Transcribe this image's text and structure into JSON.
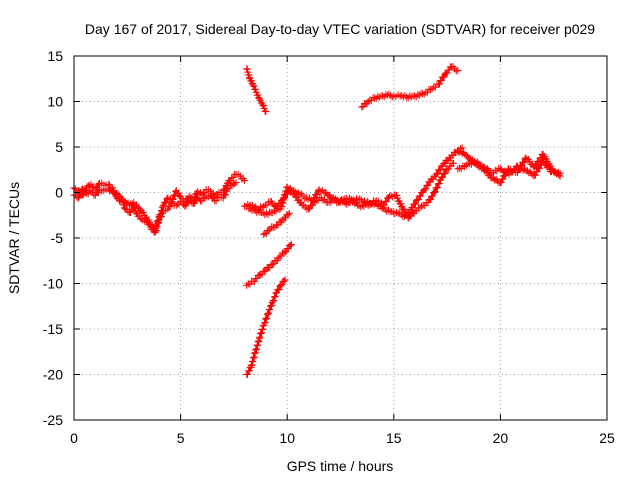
{
  "chart_data": {
    "type": "scatter",
    "title": "Day 167 of 2017, Sidereal Day-to-day VTEC variation (SDTVAR) for receiver p029",
    "xlabel": "GPS time / hours",
    "ylabel": "SDTVAR / TECUs",
    "xlim": [
      0,
      25
    ],
    "ylim": [
      -25,
      15
    ],
    "xticks": [
      0,
      5,
      10,
      15,
      20,
      25
    ],
    "yticks": [
      15,
      10,
      5,
      0,
      -5,
      -10,
      -15,
      -20,
      -25
    ],
    "grid": true,
    "marker": "plus",
    "color": "#ff0000",
    "series": [
      {
        "x": [
          0.0,
          0.2,
          0.4,
          0.6,
          0.8,
          1.0,
          1.2,
          1.4,
          1.6,
          1.8,
          2.0,
          2.2,
          2.4,
          2.6,
          2.8,
          3.0,
          3.2,
          3.4,
          3.6,
          3.8,
          4.0,
          4.2,
          4.4,
          4.6,
          4.8,
          5.0,
          5.2,
          5.4,
          5.6,
          5.8,
          6.0,
          6.2,
          6.4,
          6.6,
          6.8,
          7.0,
          7.2,
          7.4,
          7.6,
          7.8,
          8.0
        ],
        "y": [
          0.5,
          0.2,
          -0.3,
          0.6,
          0.9,
          0.4,
          1.0,
          0.8,
          0.9,
          0.5,
          -0.6,
          -0.9,
          -1.0,
          -1.4,
          -1.1,
          -1.6,
          -2.2,
          -2.8,
          -3.5,
          -4.0,
          -2.6,
          -1.4,
          -0.6,
          -1.0,
          0.2,
          -0.5,
          -1.0,
          -0.4,
          -0.8,
          0.1,
          -0.2,
          0.3,
          0.1,
          -0.4,
          0.0,
          0.2,
          1.0,
          1.6,
          2.0,
          1.8,
          1.3
        ]
      },
      {
        "x": [
          0.0,
          0.2,
          0.4,
          0.6,
          0.8,
          1.0,
          1.2,
          1.4,
          1.6,
          1.8,
          2.0,
          2.2,
          2.4,
          2.6,
          2.8,
          3.0,
          3.2,
          3.4,
          3.6,
          3.8,
          4.0,
          4.2,
          4.4,
          4.6,
          4.8,
          5.0,
          5.2,
          5.4,
          5.6,
          5.8,
          6.0,
          6.2,
          6.4,
          6.6,
          6.8,
          7.0,
          7.2,
          7.4,
          7.6
        ],
        "y": [
          -0.3,
          -0.6,
          0.4,
          -0.1,
          0.2,
          -0.3,
          0.3,
          0.2,
          0.4,
          0.1,
          -0.2,
          -0.5,
          -1.8,
          -2.2,
          -1.6,
          -2.6,
          -3.0,
          -3.2,
          -3.8,
          -4.4,
          -3.0,
          -2.0,
          -1.8,
          -1.2,
          -1.4,
          -1.0,
          -1.5,
          -0.9,
          -1.2,
          -0.6,
          -0.9,
          -0.5,
          -0.3,
          -0.9,
          -0.5,
          -0.6,
          0.4,
          0.8,
          1.1
        ]
      },
      {
        "x": [
          8.0,
          8.3,
          8.6,
          8.9,
          9.2,
          9.5,
          9.8,
          10.1,
          10.4,
          10.7,
          11.0,
          11.3,
          11.6,
          11.9,
          12.2,
          12.5,
          12.8,
          13.1,
          13.4,
          13.7,
          14.0,
          14.3,
          14.6,
          14.9,
          15.2,
          15.5,
          15.8,
          16.1,
          16.4,
          16.7,
          17.0,
          17.3,
          17.6,
          17.9,
          18.2
        ],
        "y": [
          -1.5,
          -1.4,
          -1.8,
          -1.5,
          -1.0,
          -1.6,
          -0.8,
          0.3,
          -0.4,
          -1.4,
          -1.8,
          -1.0,
          -0.6,
          -1.1,
          -0.8,
          -0.9,
          -1.3,
          -0.8,
          -0.7,
          -1.1,
          -1.2,
          -1.5,
          -1.9,
          -2.1,
          -2.3,
          -2.6,
          -1.9,
          -0.8,
          0.2,
          1.2,
          2.0,
          3.0,
          3.8,
          4.4,
          4.9
        ]
      },
      {
        "x": [
          8.2,
          8.5,
          8.8,
          9.1,
          9.4,
          9.7,
          10.0,
          10.3,
          10.6,
          10.9,
          11.2,
          11.5,
          11.8,
          12.1,
          12.4,
          12.7,
          13.0,
          13.3,
          13.6,
          13.9,
          14.2,
          14.5,
          14.8,
          15.1,
          15.4,
          15.7,
          16.0,
          16.3,
          16.6,
          16.9,
          17.2,
          17.5,
          17.8
        ],
        "y": [
          -1.8,
          -2.0,
          -2.2,
          -2.4,
          -2.0,
          -1.8,
          0.6,
          0.2,
          -0.2,
          -0.6,
          -0.9,
          0.3,
          0.0,
          -0.6,
          -1.1,
          -0.7,
          -0.8,
          -1.4,
          -1.5,
          -1.2,
          -0.9,
          -1.4,
          -0.4,
          -0.3,
          -1.7,
          -2.8,
          -2.0,
          -1.5,
          -1.1,
          0.0,
          1.4,
          2.6,
          3.2
        ]
      },
      {
        "x": [
          18.0,
          18.4,
          18.8,
          19.2,
          19.6,
          20.0,
          20.4,
          20.8,
          21.2,
          21.6,
          22.0,
          22.4,
          22.8
        ],
        "y": [
          4.6,
          4.1,
          3.2,
          2.6,
          1.6,
          1.1,
          2.6,
          2.2,
          3.8,
          2.8,
          4.2,
          2.6,
          1.8
        ]
      },
      {
        "x": [
          18.0,
          18.4,
          18.8,
          19.2,
          19.6,
          20.0,
          20.4,
          20.8,
          21.2,
          21.6,
          22.0,
          22.4,
          22.8
        ],
        "y": [
          2.6,
          3.0,
          3.4,
          2.8,
          2.2,
          2.6,
          2.0,
          2.9,
          2.4,
          1.9,
          3.4,
          2.3,
          2.1
        ]
      },
      {
        "x": [
          8.1,
          8.25,
          8.4,
          8.55,
          8.7,
          8.85,
          9.0
        ],
        "y": [
          13.6,
          12.5,
          11.8,
          11.0,
          10.3,
          9.6,
          8.9
        ]
      },
      {
        "x": [
          13.5,
          13.8,
          14.1,
          14.4,
          14.7,
          15.0,
          15.3,
          15.6,
          15.9,
          16.2,
          16.5,
          16.8,
          17.1,
          17.4,
          17.7,
          18.0
        ],
        "y": [
          9.4,
          10.0,
          10.4,
          10.6,
          10.7,
          10.6,
          10.6,
          10.5,
          10.6,
          10.7,
          11.0,
          11.4,
          11.9,
          13.0,
          13.8,
          13.4
        ]
      },
      {
        "x": [
          8.1,
          8.4,
          8.7,
          9.0,
          9.3,
          9.6,
          9.9,
          10.2
        ],
        "y": [
          -10.2,
          -9.8,
          -9.1,
          -8.5,
          -7.9,
          -7.2,
          -6.5,
          -5.7
        ]
      },
      {
        "x": [
          8.1,
          8.3,
          8.5,
          8.7,
          8.9,
          9.1,
          9.3,
          9.5,
          9.7,
          9.9
        ],
        "y": [
          -20.0,
          -19.2,
          -17.6,
          -16.0,
          -14.6,
          -13.3,
          -12.1,
          -11.0,
          -10.2,
          -9.6
        ]
      },
      {
        "x": [
          8.9,
          9.2,
          9.5,
          9.8,
          10.1
        ],
        "y": [
          -4.6,
          -4.0,
          -3.6,
          -3.0,
          -2.3
        ]
      }
    ]
  }
}
